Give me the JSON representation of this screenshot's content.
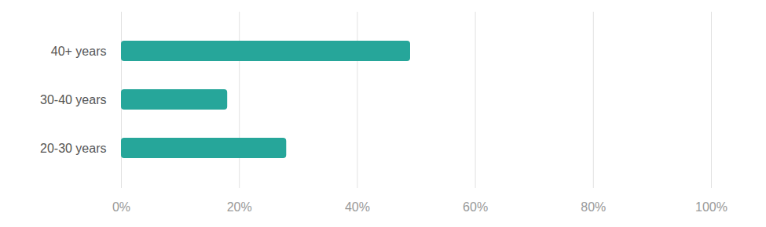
{
  "chart_data": {
    "type": "bar",
    "orientation": "horizontal",
    "categories": [
      "40+ years",
      "30-40 years",
      "20-30 years"
    ],
    "values": [
      49,
      18,
      28
    ],
    "color": "#26a69a",
    "xlim": [
      0,
      100
    ],
    "xticks": [
      {
        "value": 0,
        "label": "0%"
      },
      {
        "value": 20,
        "label": "20%"
      },
      {
        "value": 40,
        "label": "40%"
      },
      {
        "value": 60,
        "label": "60%"
      },
      {
        "value": 80,
        "label": "80%"
      },
      {
        "value": 100,
        "label": "100%"
      }
    ],
    "grid": true
  }
}
